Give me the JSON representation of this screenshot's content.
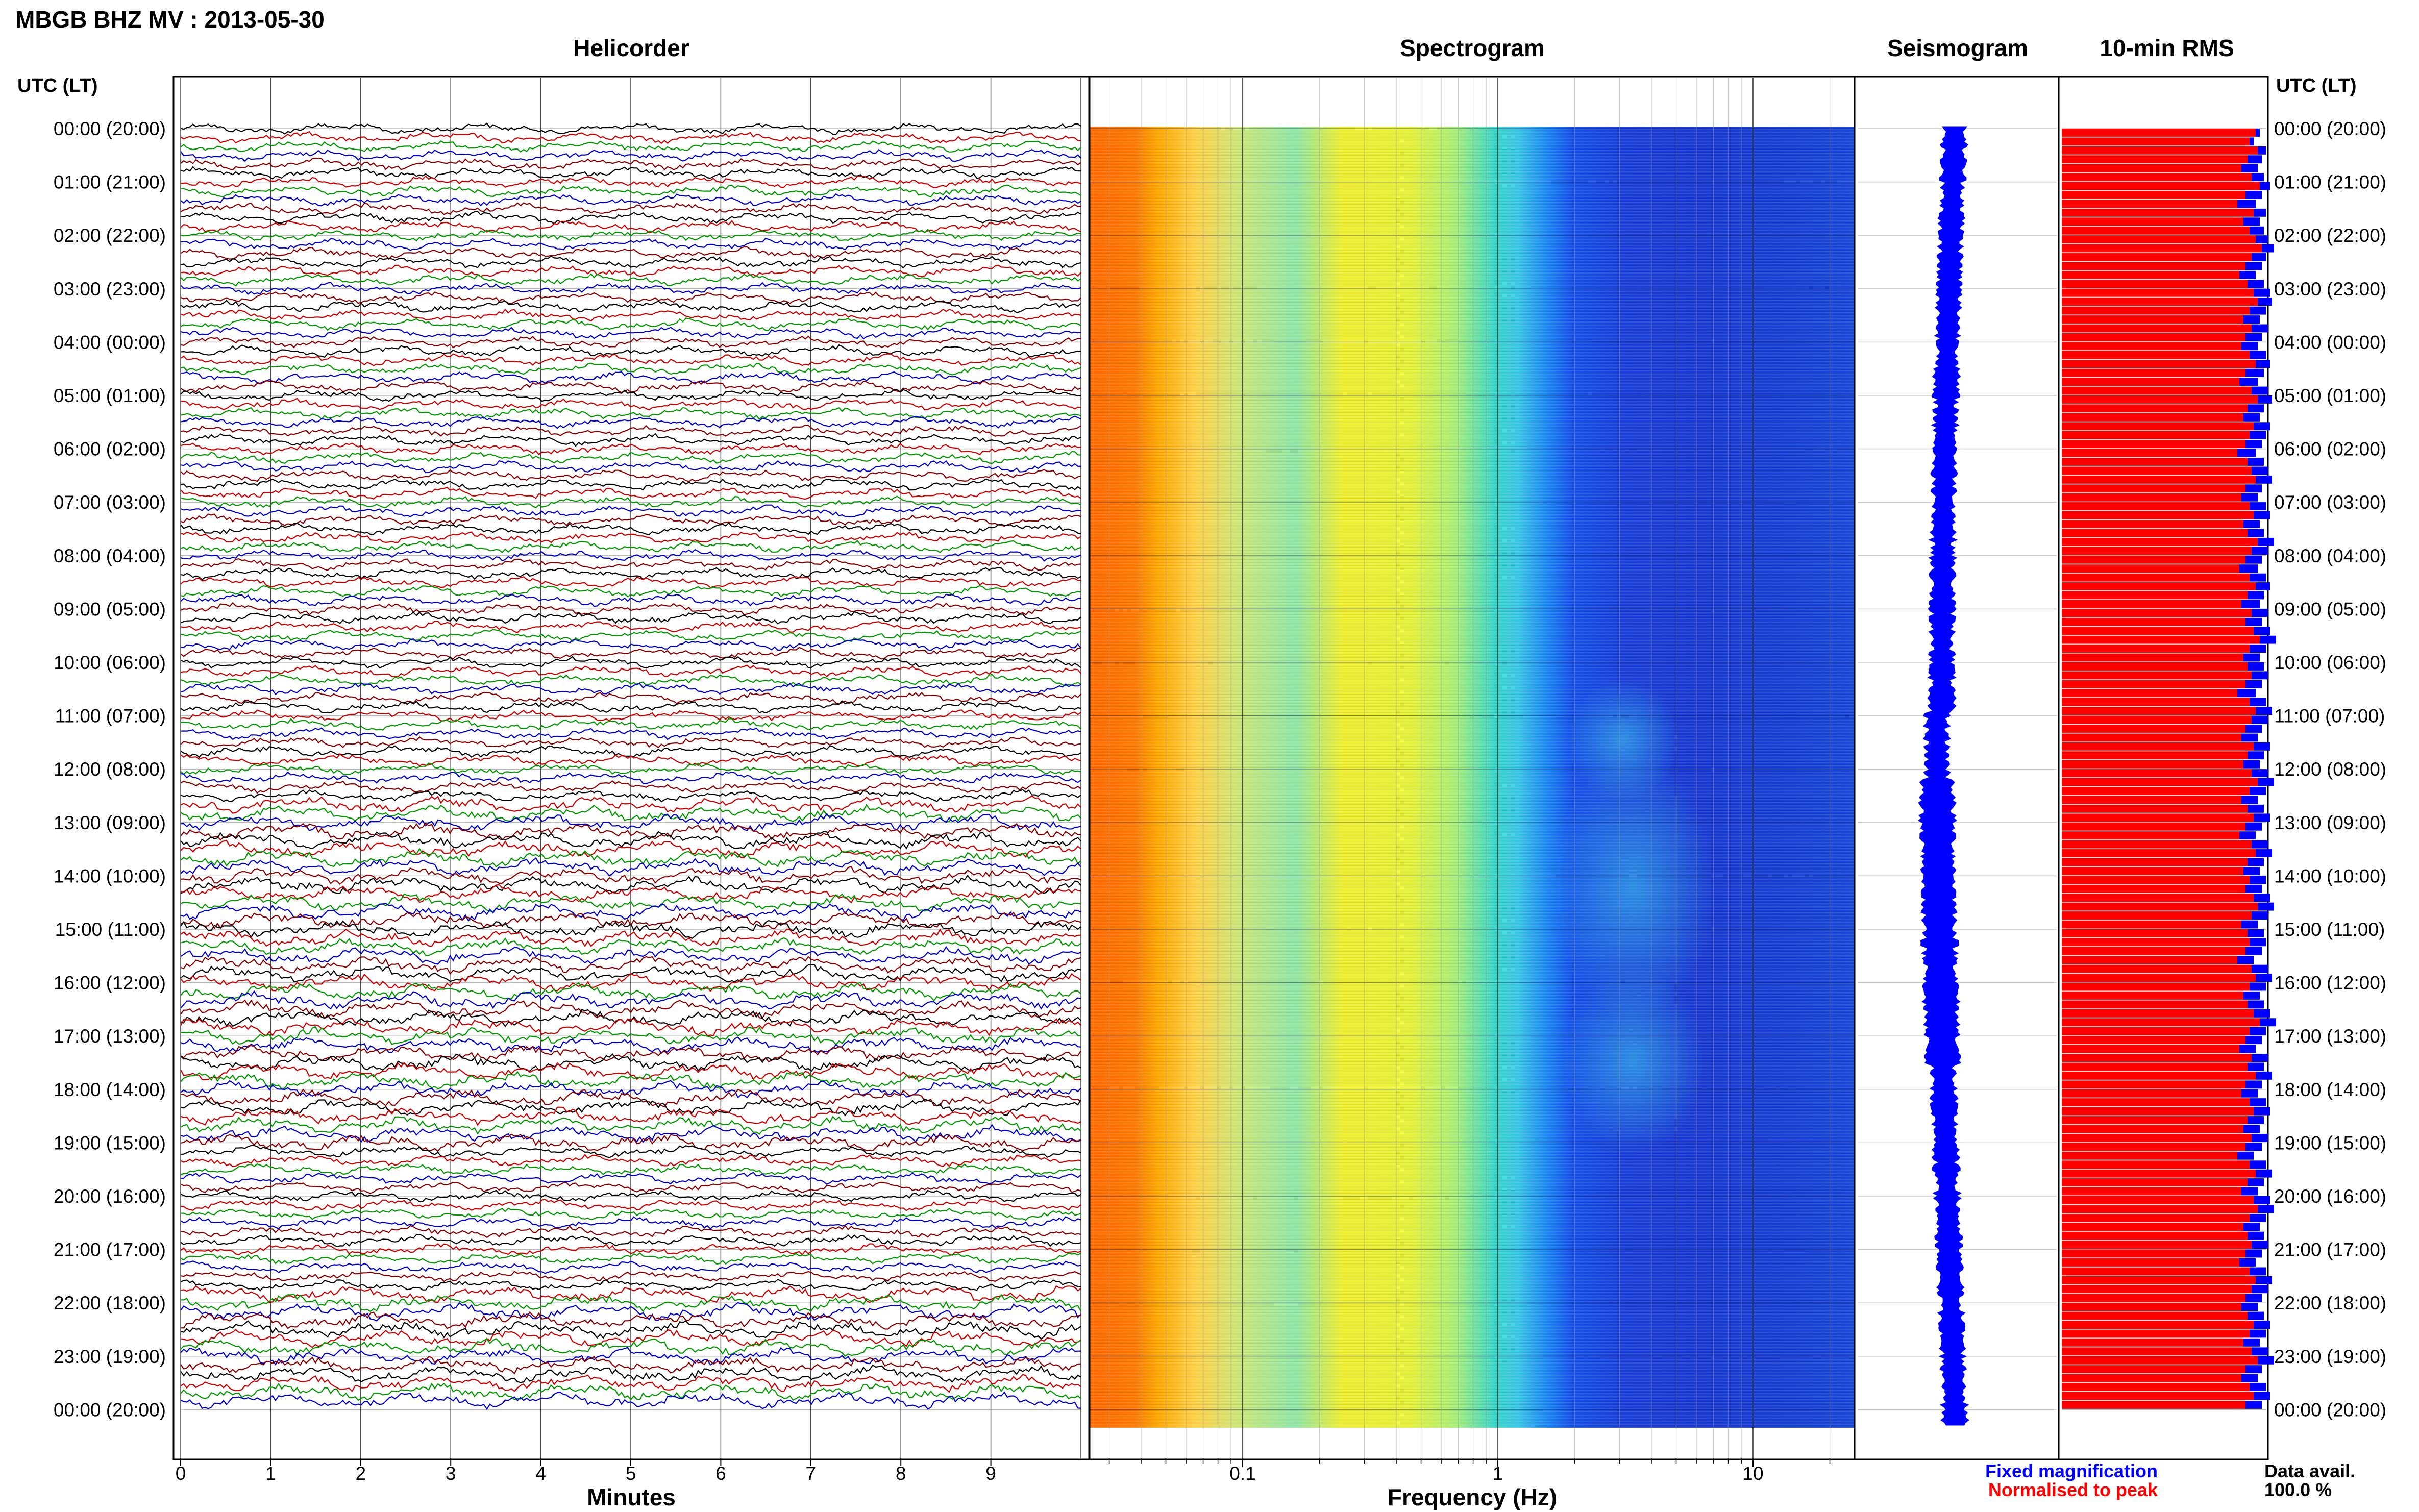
{
  "title": "MBGB BHZ MV : 2013-05-30",
  "panels": {
    "helicorder": "Helicorder",
    "spectrogram": "Spectrogram",
    "seismogram": "Seismogram",
    "rms": "10-min RMS"
  },
  "time_axis_label": "UTC (LT)",
  "time_labels": [
    "00:00 (20:00)",
    "01:00 (21:00)",
    "02:00 (22:00)",
    "03:00 (23:00)",
    "04:00 (00:00)",
    "05:00 (01:00)",
    "06:00 (02:00)",
    "07:00 (03:00)",
    "08:00 (04:00)",
    "09:00 (05:00)",
    "10:00 (06:00)",
    "11:00 (07:00)",
    "12:00 (08:00)",
    "13:00 (09:00)",
    "14:00 (10:00)",
    "15:00 (11:00)",
    "16:00 (12:00)",
    "17:00 (13:00)",
    "18:00 (14:00)",
    "19:00 (15:00)",
    "20:00 (16:00)",
    "21:00 (17:00)",
    "22:00 (18:00)",
    "23:00 (19:00)",
    "00:00 (20:00)"
  ],
  "helicorder_axis": {
    "label": "Minutes",
    "ticks": [
      "0",
      "1",
      "2",
      "3",
      "4",
      "5",
      "6",
      "7",
      "8",
      "9"
    ]
  },
  "frequency_axis": {
    "label": "Frequency (Hz)",
    "ticks": [
      "0.1",
      "1",
      "10"
    ]
  },
  "legend": {
    "fixed": "Fixed magnification",
    "normalised": "Normalised to peak"
  },
  "data_avail": {
    "label": "Data avail.",
    "value": "100.0 %"
  },
  "colors": {
    "trace_cycle": [
      "#000000",
      "#cc0000",
      "#009900",
      "#0000cc",
      "#880000"
    ],
    "fixed": "#0000ff",
    "normalised": "#ff0000"
  },
  "chart_data": {
    "type": "helicorder",
    "date": "2013-05-30",
    "helicorder": {
      "minutes_per_line": 10,
      "lines": 144,
      "xlim": [
        0,
        10
      ]
    },
    "spectrogram": {
      "xscale": "log",
      "xlim": [
        0.025,
        25
      ],
      "ticks": [
        0.1,
        1,
        10
      ]
    },
    "rms_10min": {
      "segments": 144,
      "normalised": [
        0.95,
        0.92,
        0.96,
        0.91,
        0.88,
        0.93,
        0.97,
        0.9,
        0.86,
        0.94,
        0.89,
        0.92,
        0.95,
        0.98,
        0.93,
        0.9,
        0.87,
        0.91,
        0.94,
        0.96,
        0.92,
        0.89,
        0.93,
        0.9,
        0.88,
        0.92,
        0.95,
        0.9,
        0.87,
        0.93,
        0.96,
        0.91,
        0.89,
        0.94,
        0.92,
        0.9,
        0.86,
        0.91,
        0.93,
        0.95,
        0.9,
        0.88,
        0.92,
        0.94,
        0.89,
        0.91,
        0.96,
        0.93,
        0.9,
        0.87,
        0.92,
        0.95,
        0.91,
        0.88,
        0.93,
        0.9,
        0.94,
        0.97,
        0.92,
        0.89,
        0.91,
        0.93,
        0.9,
        0.86,
        0.92,
        0.95,
        0.93,
        0.9,
        0.88,
        0.94,
        0.91,
        0.89,
        0.93,
        0.96,
        0.92,
        0.88,
        0.91,
        0.94,
        0.9,
        0.87,
        0.93,
        0.95,
        0.91,
        0.89,
        0.92,
        0.9,
        0.94,
        0.96,
        0.93,
        0.88,
        0.91,
        0.92,
        0.9,
        0.86,
        0.93,
        0.95,
        0.92,
        0.89,
        0.91,
        0.94,
        0.97,
        0.92,
        0.9,
        0.87,
        0.93,
        0.91,
        0.95,
        0.9,
        0.88,
        0.92,
        0.94,
        0.91,
        0.89,
        0.93,
        0.9,
        0.86,
        0.92,
        0.95,
        0.91,
        0.88,
        0.94,
        0.96,
        0.92,
        0.89,
        0.91,
        0.93,
        0.9,
        0.87,
        0.92,
        0.95,
        0.93,
        0.9,
        0.88,
        0.91,
        0.94,
        0.92,
        0.89,
        0.93,
        0.96,
        0.9,
        0.88,
        0.92,
        0.94,
        0.9
      ],
      "fixed": [
        0.85,
        0.82,
        0.88,
        0.86,
        0.84,
        0.87,
        0.9,
        0.86,
        0.83,
        0.88,
        0.85,
        0.87,
        0.89,
        0.92,
        0.88,
        0.86,
        0.83,
        0.87,
        0.9,
        0.91,
        0.88,
        0.85,
        0.89,
        0.86,
        0.84,
        0.88,
        0.9,
        0.87,
        0.84,
        0.89,
        0.91,
        0.87,
        0.85,
        0.9,
        0.88,
        0.86,
        0.83,
        0.87,
        0.89,
        0.91,
        0.86,
        0.84,
        0.88,
        0.9,
        0.85,
        0.87,
        0.92,
        0.89,
        0.86,
        0.84,
        0.88,
        0.9,
        0.87,
        0.85,
        0.89,
        0.86,
        0.9,
        0.93,
        0.88,
        0.85,
        0.87,
        0.89,
        0.86,
        0.83,
        0.88,
        0.91,
        0.89,
        0.86,
        0.84,
        0.9,
        0.87,
        0.85,
        0.89,
        0.92,
        0.88,
        0.84,
        0.87,
        0.9,
        0.86,
        0.83,
        0.89,
        0.91,
        0.87,
        0.85,
        0.88,
        0.86,
        0.9,
        0.92,
        0.89,
        0.84,
        0.87,
        0.88,
        0.86,
        0.82,
        0.89,
        0.91,
        0.88,
        0.85,
        0.87,
        0.9,
        0.93,
        0.88,
        0.86,
        0.83,
        0.89,
        0.87,
        0.91,
        0.86,
        0.84,
        0.88,
        0.9,
        0.87,
        0.85,
        0.89,
        0.86,
        0.82,
        0.88,
        0.91,
        0.87,
        0.84,
        0.9,
        0.92,
        0.88,
        0.85,
        0.87,
        0.89,
        0.86,
        0.83,
        0.88,
        0.91,
        0.89,
        0.86,
        0.84,
        0.87,
        0.9,
        0.88,
        0.85,
        0.89,
        0.92,
        0.86,
        0.84,
        0.88,
        0.9,
        0.86
      ]
    }
  }
}
